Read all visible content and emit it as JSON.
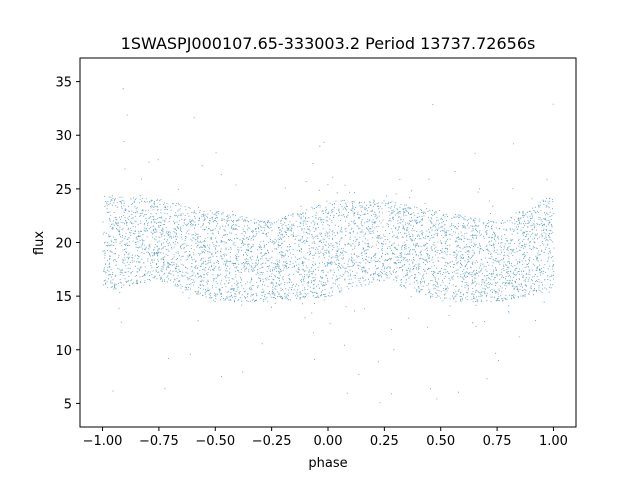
{
  "chart_data": {
    "type": "scatter",
    "title": "1SWASPJ000107.65-333003.2 Period 13737.72656s",
    "xlabel": "phase",
    "ylabel": "flux",
    "xlim": [
      -1.1,
      1.1
    ],
    "ylim": [
      2.8,
      37.2
    ],
    "xticks": [
      "−1.00",
      "−0.75",
      "−0.50",
      "−0.25",
      "0.00",
      "0.25",
      "0.50",
      "0.75",
      "1.00"
    ],
    "xtick_values": [
      -1.0,
      -0.75,
      -0.5,
      -0.25,
      0.0,
      0.25,
      0.5,
      0.75,
      1.0
    ],
    "yticks": [
      "5",
      "10",
      "15",
      "20",
      "25",
      "30",
      "35"
    ],
    "ytick_values": [
      5,
      10,
      15,
      20,
      25,
      30,
      35
    ],
    "grid": false,
    "series": [
      {
        "color": "#1f77b4",
        "description_points": [
          {
            "phase": -1.0,
            "flux_low": 15.5,
            "flux_high": 24.5
          },
          {
            "phase": -0.75,
            "flux_low": 16.5,
            "flux_high": 24.0
          },
          {
            "phase": -0.5,
            "flux_low": 14.5,
            "flux_high": 23.0
          },
          {
            "phase": -0.25,
            "flux_low": 14.5,
            "flux_high": 22.0
          },
          {
            "phase": 0.0,
            "flux_low": 15.0,
            "flux_high": 24.0
          },
          {
            "phase": 0.25,
            "flux_low": 16.5,
            "flux_high": 24.0
          },
          {
            "phase": 0.5,
            "flux_low": 14.5,
            "flux_high": 23.0
          },
          {
            "phase": 0.75,
            "flux_low": 14.5,
            "flux_high": 22.0
          },
          {
            "phase": 1.0,
            "flux_low": 15.5,
            "flux_high": 24.5
          }
        ]
      }
    ]
  }
}
